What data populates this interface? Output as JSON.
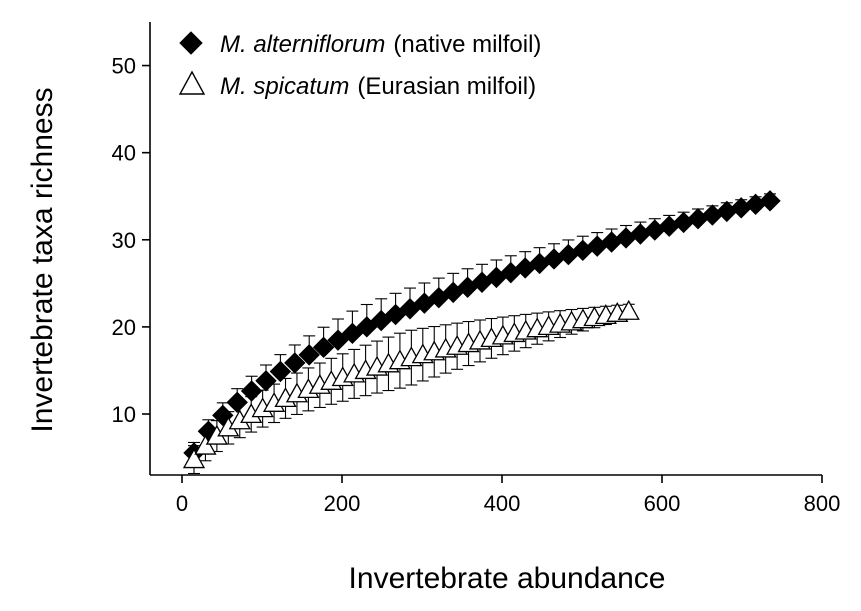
{
  "chart_data": {
    "type": "scatter",
    "title": "",
    "xlabel": "Invertebrate abundance",
    "ylabel": "Invertebrate taxa richness",
    "xlim": [
      -40,
      800
    ],
    "ylim": [
      3,
      55
    ],
    "xticks": [
      0,
      200,
      400,
      600,
      800
    ],
    "yticks": [
      10,
      20,
      30,
      40,
      50
    ],
    "grid": false,
    "legend_position": "top-left",
    "series": [
      {
        "species": "M. alterniflorum",
        "common": "(native milfoil)",
        "marker": "filled-diamond",
        "color": "#000000",
        "error_bar": "upper",
        "a": 1.55,
        "k": 0.47,
        "x_start": 15,
        "x_step": 18,
        "n_points": 41,
        "err_low": 1.2,
        "err_high": 2.6,
        "err_peak_x": 220,
        "err_end": 0.8
      },
      {
        "species": "M. spicatum",
        "common": "(Eurasian milfoil)",
        "marker": "open-triangle",
        "color": "#000000",
        "error_bar": "both",
        "a": 1.53,
        "k": 0.42,
        "x_start": 15,
        "x_step": 14.3,
        "n_points": 39,
        "err_low": 1.6,
        "err_high": 3.2,
        "err_peak_x": 280,
        "err_end": 0.8
      }
    ]
  }
}
